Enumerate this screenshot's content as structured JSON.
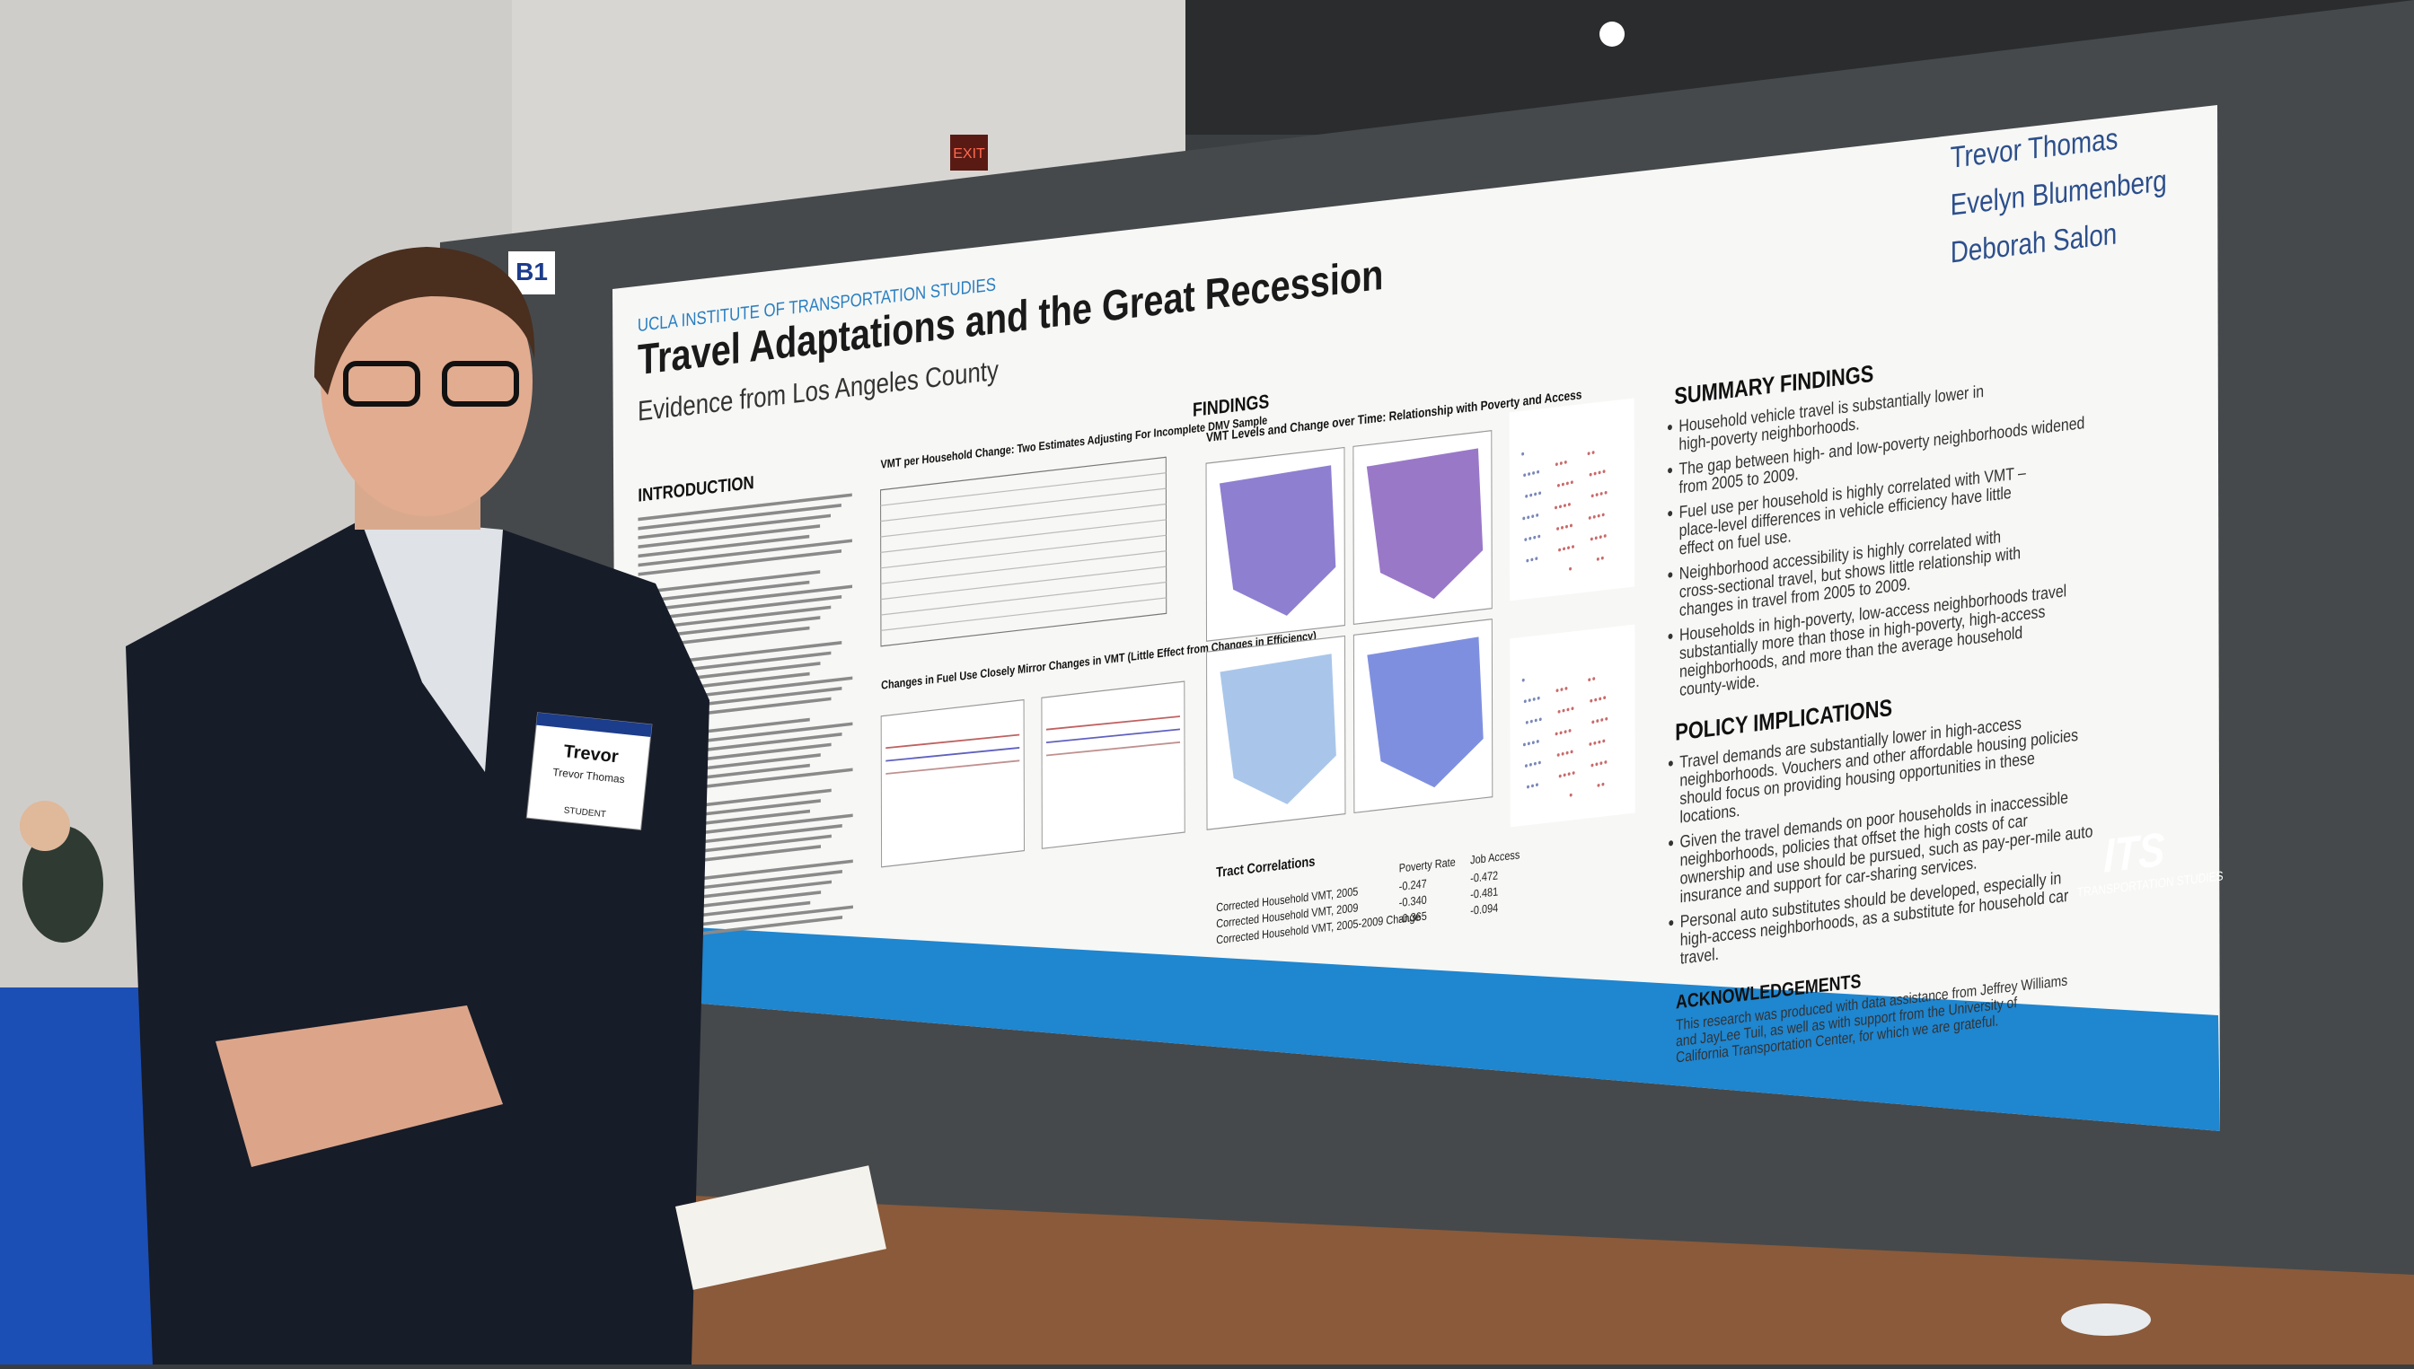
{
  "scene": {
    "exit_sign": "EXIT",
    "booth": "B1",
    "badge": {
      "name": "Trevor",
      "full_name": "Trevor Thomas",
      "role": "STUDENT"
    }
  },
  "poster": {
    "institute": "UCLA INSTITUTE OF TRANSPORTATION STUDIES",
    "title": "Travel Adaptations and the Great Recession",
    "subtitle": "Evidence from Los Angeles County",
    "authors": [
      "Trevor Thomas",
      "Evelyn Blumenberg",
      "Deborah Salon"
    ],
    "introduction": {
      "heading": "INTRODUCTION"
    },
    "middle": {
      "table_title": "VMT per Household Change: Two Estimates Adjusting For Incomplete DMV Sample",
      "chart_title": "Changes in Fuel Use Closely Mirror Changes in VMT (Little Effect from Changes in Efficiency)"
    },
    "findings": {
      "heading": "FINDINGS",
      "maps_title": "VMT Levels and Change over Time: Relationship with Poverty and Access",
      "correlations": {
        "title": "Tract Correlations",
        "columns": [
          "Poverty Rate",
          "Job Access"
        ],
        "rows": [
          [
            "Corrected Household VMT, 2005",
            "-0.247",
            "-0.472"
          ],
          [
            "Corrected Household VMT, 2009",
            "-0.340",
            "-0.481"
          ],
          [
            "Corrected Household VMT, 2005-2009 Change",
            "-0.365",
            "-0.094"
          ]
        ]
      }
    },
    "summary": {
      "heading": "SUMMARY FINDINGS",
      "items": [
        "Household vehicle travel is substantially lower in high-poverty neighborhoods.",
        "The gap between high- and low-poverty neighborhoods widened from 2005 to 2009.",
        "Fuel use per household is highly correlated with VMT – place-level differences in vehicle efficiency have little effect on fuel use.",
        "Neighborhood accessibility is highly correlated with cross-sectional travel, but shows little relationship with changes in travel from 2005 to 2009.",
        "Households in high-poverty, low-access neighborhoods travel substantially more than those in high-poverty, high-access neighborhoods, and more than the average household county-wide."
      ]
    },
    "policy": {
      "heading": "POLICY IMPLICATIONS",
      "items": [
        "Travel demands are substantially lower in high-access neighborhoods. Vouchers and other affordable housing policies should focus on providing housing opportunities in these locations.",
        "Given the travel demands on poor households in inaccessible neighborhoods, policies that offset the high costs of car ownership and use should be pursued, such as pay-per-mile auto insurance and support for car-sharing services.",
        "Personal auto substitutes should be developed, especially in high-access neighborhoods, as a substitute for household car travel."
      ]
    },
    "acknowledgements": {
      "heading": "ACKNOWLEDGEMENTS",
      "text": "This research was produced with data assistance from Jeffrey Williams and JayLee Tuil, as well as with support from the University of California Transportation Center, for which we are grateful."
    },
    "logo": {
      "mark": "ITS",
      "caption": "TRANSPORTATION STUDIES"
    }
  }
}
